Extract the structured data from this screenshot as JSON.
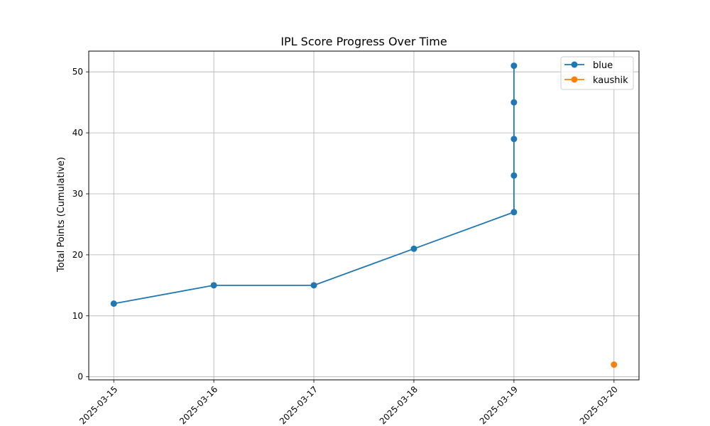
{
  "chart_data": {
    "type": "line",
    "title": "IPL Score Progress Over Time",
    "xlabel": "",
    "ylabel": "Total Points (Cumulative)",
    "x_ticks": [
      "2025-03-15",
      "2025-03-16",
      "2025-03-17",
      "2025-03-18",
      "2025-03-19",
      "2025-03-20"
    ],
    "y_ticks": [
      0,
      10,
      20,
      30,
      40,
      50
    ],
    "xlim": [
      "2025-03-14",
      "2025-03-20"
    ],
    "ylim": [
      0,
      53
    ],
    "grid": true,
    "legend_position": "top-right",
    "series": [
      {
        "name": "blue",
        "color": "#1f77b4",
        "marker": "circle",
        "points": [
          {
            "x": "2025-03-15",
            "y": 12
          },
          {
            "x": "2025-03-16",
            "y": 15
          },
          {
            "x": "2025-03-17",
            "y": 15
          },
          {
            "x": "2025-03-18",
            "y": 21
          },
          {
            "x": "2025-03-19",
            "y": 27
          },
          {
            "x": "2025-03-19",
            "y": 33
          },
          {
            "x": "2025-03-19",
            "y": 39
          },
          {
            "x": "2025-03-19",
            "y": 45
          },
          {
            "x": "2025-03-19",
            "y": 51
          }
        ]
      },
      {
        "name": "kaushik",
        "color": "#ff7f0e",
        "marker": "circle",
        "points": [
          {
            "x": "2025-03-20",
            "y": 2
          }
        ]
      }
    ]
  }
}
